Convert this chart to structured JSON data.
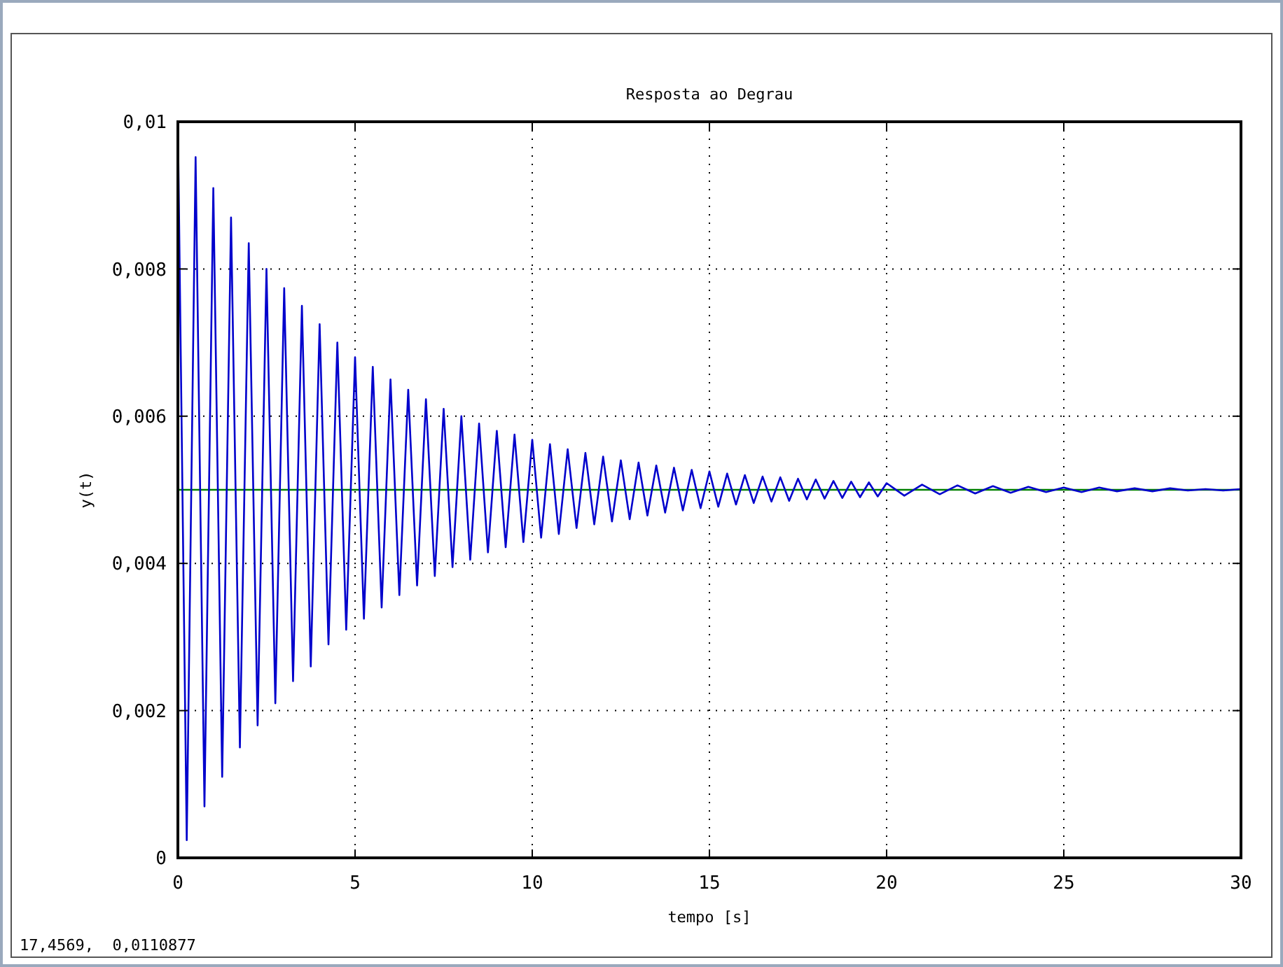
{
  "chart_data": {
    "type": "line",
    "title": "Resposta ao Degrau",
    "xlabel": "tempo [s]",
    "ylabel": "y(t)",
    "xlim": [
      0,
      30
    ],
    "xticks": [
      0,
      5,
      10,
      15,
      20,
      25,
      30
    ],
    "ylim": [
      0,
      0.01
    ],
    "yticks": [
      0,
      {
        "value": 0.002,
        "label": "0,002"
      },
      {
        "value": 0.004,
        "label": "0,004"
      },
      {
        "value": 0.006,
        "label": "0,006"
      },
      {
        "value": 0.008,
        "label": "0,008"
      },
      {
        "value": 0.01,
        "label": "0,01"
      }
    ],
    "grid": true,
    "marker": "none",
    "line_style": "solid",
    "annotations": [
      "17,4569,  0,0110877"
    ],
    "series": [
      {
        "color": "#0000cc",
        "x": [
          0,
          0.25,
          0.5,
          0.75,
          1,
          1.25,
          1.5,
          1.75,
          2,
          2.25,
          2.5,
          2.75,
          3,
          3.25,
          3.5,
          3.75,
          4,
          4.25,
          4.5,
          4.75,
          5,
          5.25,
          5.5,
          5.75,
          6,
          6.25,
          6.5,
          6.75,
          7,
          7.25,
          7.5,
          7.75,
          8,
          8.25,
          8.5,
          8.75,
          9,
          9.25,
          9.5,
          9.75,
          10,
          10.25,
          10.5,
          10.75,
          11,
          11.25,
          11.5,
          11.75,
          12,
          12.25,
          12.5,
          12.75,
          13,
          13.25,
          13.5,
          13.75,
          14,
          14.25,
          14.5,
          14.75,
          15,
          15.25,
          15.5,
          15.75,
          16,
          16.25,
          16.5,
          16.75,
          17,
          17.25,
          17.5,
          17.75,
          18,
          18.25,
          18.5,
          18.75,
          19,
          19.25,
          19.5,
          19.75,
          20,
          20.5,
          21,
          21.5,
          22,
          22.5,
          23,
          23.5,
          24,
          24.5,
          25,
          25.5,
          26,
          26.5,
          27,
          27.5,
          28,
          28.5,
          29,
          29.5,
          30
        ],
        "values": [
          0.01,
          0.00024,
          0.00952,
          0.0007,
          0.0091,
          0.0011,
          0.0087,
          0.0015,
          0.00835,
          0.0018,
          0.008,
          0.0021,
          0.00774,
          0.0024,
          0.0075,
          0.0026,
          0.00725,
          0.0029,
          0.007,
          0.0031,
          0.0068,
          0.00325,
          0.00667,
          0.0034,
          0.0065,
          0.00357,
          0.00636,
          0.0037,
          0.00623,
          0.00383,
          0.0061,
          0.00395,
          0.006,
          0.00405,
          0.0059,
          0.00415,
          0.0058,
          0.00422,
          0.00575,
          0.00429,
          0.00568,
          0.00435,
          0.00562,
          0.0044,
          0.00555,
          0.00448,
          0.0055,
          0.00453,
          0.00545,
          0.00457,
          0.0054,
          0.0046,
          0.00537,
          0.00465,
          0.00533,
          0.00469,
          0.0053,
          0.00472,
          0.00527,
          0.00475,
          0.00525,
          0.00477,
          0.00522,
          0.0048,
          0.0052,
          0.00482,
          0.00518,
          0.00484,
          0.00517,
          0.00485,
          0.00515,
          0.00487,
          0.00514,
          0.00488,
          0.00512,
          0.00489,
          0.00511,
          0.0049,
          0.0051,
          0.00491,
          0.00509,
          0.00492,
          0.00507,
          0.00494,
          0.00506,
          0.00495,
          0.00505,
          0.00496,
          0.00504,
          0.00497,
          0.00503,
          0.00497,
          0.00503,
          0.00498,
          0.00502,
          0.00498,
          0.00502,
          0.00499,
          0.00501,
          0.00499,
          0.00501
        ]
      },
      {
        "color": "#008000",
        "x": [
          0,
          30
        ],
        "values": [
          0.005,
          0.005
        ]
      }
    ]
  }
}
